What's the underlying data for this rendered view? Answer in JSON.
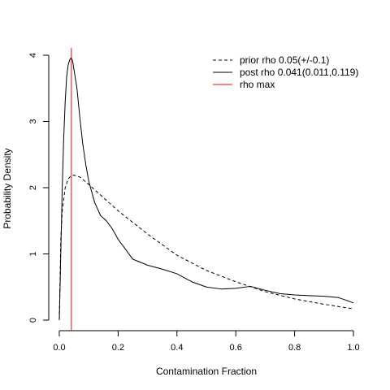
{
  "chart_data": {
    "type": "line",
    "title": "",
    "xlabel": "Contamination Fraction",
    "ylabel": "Probability Density",
    "xlim": [
      0,
      1
    ],
    "ylim": [
      0,
      4
    ],
    "x_ticks": [
      0,
      0.2,
      0.4,
      0.6,
      0.8,
      1
    ],
    "x_tick_labels": [
      "0.0",
      "0.2",
      "0.4",
      "0.6",
      "0.8",
      "1.0"
    ],
    "y_ticks": [
      0,
      1,
      2,
      3,
      4
    ],
    "y_tick_labels": [
      "0",
      "1",
      "2",
      "3",
      "4"
    ],
    "grid": false,
    "legend_position": "top-right",
    "series": [
      {
        "name": "prior rho 0.05(+/-0.1)",
        "color": "#000000",
        "dash": "dashed",
        "x": [
          0.0,
          0.005,
          0.01,
          0.02,
          0.03,
          0.04,
          0.05,
          0.07,
          0.1,
          0.15,
          0.2,
          0.3,
          0.4,
          0.5,
          0.6,
          0.7,
          0.8,
          0.9,
          1.0
        ],
        "y": [
          0.0,
          1.2,
          1.65,
          2.0,
          2.13,
          2.18,
          2.19,
          2.16,
          2.05,
          1.85,
          1.65,
          1.3,
          0.98,
          0.75,
          0.58,
          0.43,
          0.32,
          0.24,
          0.17
        ]
      },
      {
        "name": "post rho 0.041(0.011,0.119)",
        "color": "#000000",
        "dash": "solid",
        "x": [
          0.0,
          0.005,
          0.01,
          0.015,
          0.02,
          0.025,
          0.03,
          0.035,
          0.04,
          0.045,
          0.05,
          0.06,
          0.07,
          0.08,
          0.09,
          0.1,
          0.12,
          0.14,
          0.16,
          0.18,
          0.2,
          0.25,
          0.3,
          0.35,
          0.4,
          0.45,
          0.5,
          0.55,
          0.6,
          0.65,
          0.7,
          0.75,
          0.8,
          0.85,
          0.9,
          0.95,
          1.0
        ],
        "y": [
          0.0,
          1.0,
          2.0,
          2.75,
          3.3,
          3.68,
          3.85,
          3.93,
          3.96,
          3.92,
          3.78,
          3.5,
          3.05,
          2.65,
          2.35,
          2.1,
          1.78,
          1.58,
          1.5,
          1.38,
          1.22,
          0.92,
          0.83,
          0.77,
          0.7,
          0.58,
          0.5,
          0.47,
          0.48,
          0.51,
          0.45,
          0.4,
          0.38,
          0.37,
          0.36,
          0.34,
          0.26
        ]
      }
    ],
    "vlines": [
      {
        "name": "rho max",
        "x": 0.041,
        "color": "#ff0000",
        "dash": "solid"
      }
    ]
  }
}
